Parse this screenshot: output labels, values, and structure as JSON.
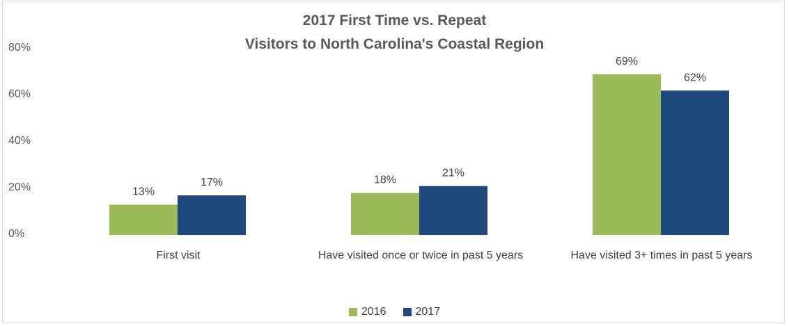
{
  "chart_data": {
    "type": "bar",
    "title_line1": "2017 First Time vs. Repeat",
    "title_line2": "Visitors to North Carolina's Coastal Region",
    "categories": [
      "First visit",
      "Have visited once or twice in past 5 years",
      "Have visited 3+ times in past 5 years"
    ],
    "series": [
      {
        "name": "2016",
        "color": "#9bbb59",
        "values": [
          13,
          18,
          69
        ],
        "labels": [
          "13%",
          "18%",
          "69%"
        ]
      },
      {
        "name": "2017",
        "color": "#1f497d",
        "values": [
          17,
          21,
          62
        ],
        "labels": [
          "17%",
          "21%",
          "62%"
        ]
      }
    ],
    "yticks": [
      "0%",
      "20%",
      "40%",
      "60%",
      "80%"
    ],
    "ylim": [
      0,
      80
    ],
    "grid": false,
    "legend_position": "bottom",
    "xlabel": "",
    "ylabel": ""
  }
}
